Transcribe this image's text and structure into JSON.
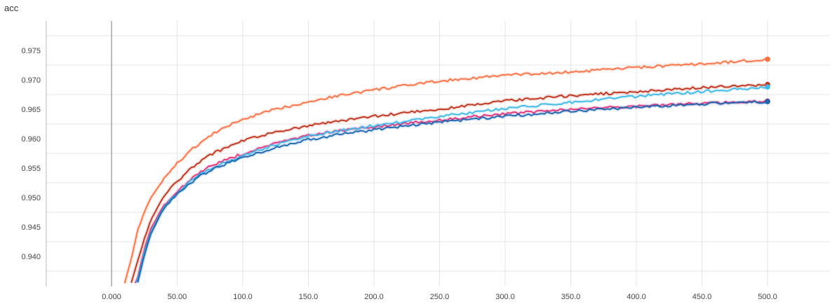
{
  "chart_data": {
    "type": "line",
    "title": "acc",
    "xlabel": "",
    "ylabel": "",
    "xlim": [
      -50,
      550
    ],
    "ylim": [
      0.9355,
      0.9795
    ],
    "x_ticks": [
      "0.000",
      "50.00",
      "100.0",
      "150.0",
      "200.0",
      "250.0",
      "300.0",
      "350.0",
      "400.0",
      "450.0",
      "500.0"
    ],
    "y_ticks": [
      "0.940",
      "0.945",
      "0.950",
      "0.955",
      "0.960",
      "0.965",
      "0.970",
      "0.975"
    ],
    "grid": true,
    "legend": "none",
    "series": [
      {
        "color": "#ff7043",
        "x": [
          10,
          15,
          20,
          25,
          30,
          40,
          50,
          60,
          70,
          80,
          90,
          100,
          125,
          150,
          175,
          200,
          250,
          300,
          350,
          400,
          450,
          500
        ],
        "values": [
          0.9355,
          0.9395,
          0.9445,
          0.9475,
          0.95,
          0.9532,
          0.9558,
          0.958,
          0.9597,
          0.9612,
          0.9623,
          0.9633,
          0.965,
          0.9663,
          0.9674,
          0.9683,
          0.9698,
          0.9708,
          0.9713,
          0.9721,
          0.9727,
          0.9735
        ]
      },
      {
        "color": "#c0311a",
        "x": [
          15,
          20,
          25,
          30,
          40,
          50,
          60,
          70,
          80,
          90,
          100,
          125,
          150,
          175,
          200,
          250,
          300,
          350,
          400,
          450,
          500
        ],
        "values": [
          0.9355,
          0.9393,
          0.943,
          0.9462,
          0.9503,
          0.9527,
          0.9548,
          0.9565,
          0.9578,
          0.9587,
          0.9596,
          0.9612,
          0.9622,
          0.963,
          0.9638,
          0.965,
          0.9664,
          0.9673,
          0.968,
          0.9687,
          0.9692
        ]
      },
      {
        "color": "#e7327c",
        "x": [
          18,
          20,
          25,
          30,
          40,
          50,
          60,
          70,
          80,
          90,
          100,
          125,
          150,
          175,
          200,
          250,
          300,
          350,
          400,
          450,
          500
        ],
        "values": [
          0.9355,
          0.9365,
          0.9412,
          0.9447,
          0.9488,
          0.951,
          0.953,
          0.9547,
          0.9558,
          0.9566,
          0.9574,
          0.9592,
          0.9605,
          0.9614,
          0.962,
          0.9632,
          0.9642,
          0.965,
          0.9655,
          0.966,
          0.9664
        ]
      },
      {
        "color": "#3fb9ea",
        "x": [
          19,
          20,
          25,
          30,
          40,
          50,
          60,
          70,
          80,
          90,
          100,
          125,
          150,
          175,
          200,
          250,
          300,
          350,
          400,
          450,
          500
        ],
        "values": [
          0.9355,
          0.936,
          0.9408,
          0.9442,
          0.9485,
          0.9507,
          0.9527,
          0.9543,
          0.9554,
          0.9563,
          0.9571,
          0.959,
          0.9604,
          0.9614,
          0.9622,
          0.9638,
          0.9651,
          0.9662,
          0.9672,
          0.968,
          0.9688
        ]
      },
      {
        "color": "#1a66b0",
        "x": [
          20,
          25,
          30,
          40,
          50,
          60,
          70,
          80,
          90,
          100,
          125,
          150,
          175,
          200,
          250,
          300,
          350,
          400,
          450,
          500
        ],
        "values": [
          0.9355,
          0.9402,
          0.9438,
          0.9483,
          0.9505,
          0.9525,
          0.954,
          0.9551,
          0.956,
          0.9568,
          0.9585,
          0.9598,
          0.9608,
          0.9615,
          0.9628,
          0.9638,
          0.9647,
          0.9653,
          0.9659,
          0.9663
        ]
      }
    ]
  }
}
